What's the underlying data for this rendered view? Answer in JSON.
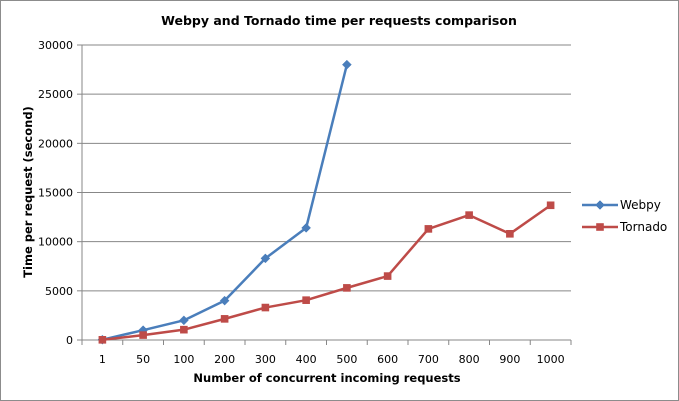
{
  "chart_data": {
    "type": "line",
    "title": "Webpy and Tornado time per requests comparison",
    "xlabel": "Number of concurrent incoming  requests",
    "ylabel": "Time per request (second)",
    "categories": [
      "1",
      "50",
      "100",
      "200",
      "300",
      "400",
      "500",
      "600",
      "700",
      "800",
      "900",
      "1000"
    ],
    "ylim": [
      0,
      30000
    ],
    "yticks": [
      "0",
      "5000",
      "10000",
      "15000",
      "20000",
      "25000",
      "30000"
    ],
    "ytick_values": [
      0,
      5000,
      10000,
      15000,
      20000,
      25000,
      30000
    ],
    "grid": true,
    "legend": "right",
    "series": [
      {
        "name": "Webpy",
        "color": "#4a7ebb",
        "marker": "diamond",
        "values": [
          30,
          1000,
          2000,
          4000,
          8300,
          11400,
          28000,
          null,
          null,
          null,
          null,
          null
        ]
      },
      {
        "name": "Tornado",
        "color": "#be4b48",
        "marker": "square",
        "values": [
          20,
          500,
          1050,
          2150,
          3300,
          4050,
          5300,
          6500,
          11300,
          12700,
          10800,
          13700
        ]
      }
    ]
  }
}
